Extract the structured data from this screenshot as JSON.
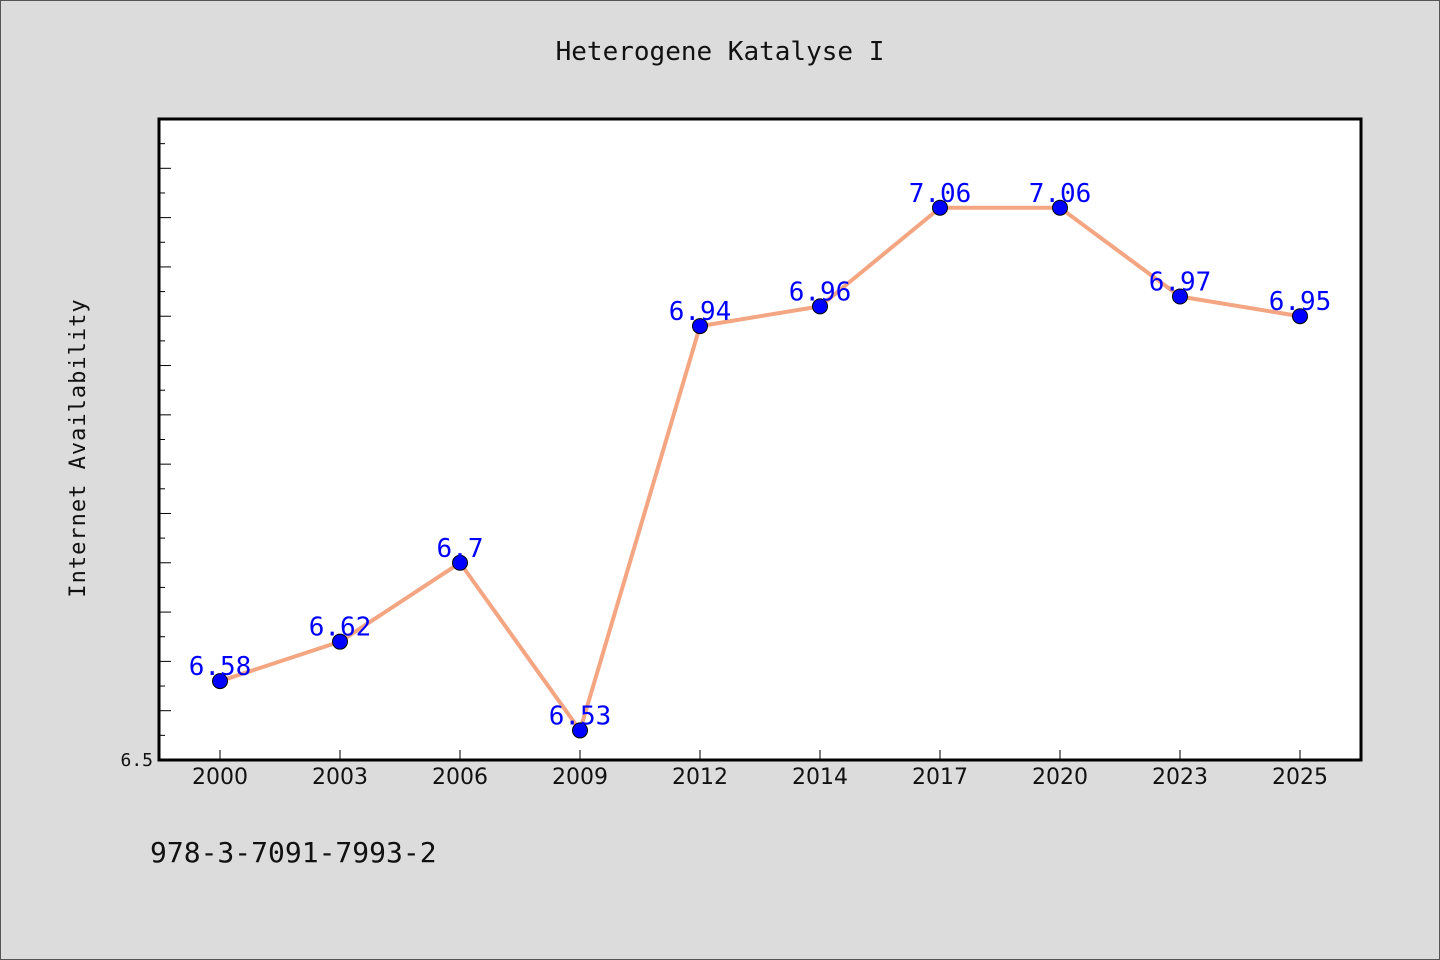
{
  "footer": {
    "isbn": "978-3-7091-7993-2"
  },
  "chart_data": {
    "type": "line",
    "title": "Heterogene Katalyse I",
    "xlabel": "",
    "ylabel": "Internet Availability",
    "categories": [
      "2000",
      "2003",
      "2006",
      "2009",
      "2012",
      "2014",
      "2017",
      "2020",
      "2023",
      "2025"
    ],
    "series": [
      {
        "values": [
          6.58,
          6.62,
          6.7,
          6.53,
          6.94,
          6.96,
          7.06,
          7.06,
          6.97,
          6.95
        ]
      }
    ],
    "ylim": [
      6.5,
      7.15
    ],
    "y_tick_labels": [
      "6.5"
    ],
    "data_labels": [
      "6.58",
      "6.62",
      "6.7",
      "6.53",
      "6.94",
      "6.96",
      "7.06",
      "7.06",
      "6.97",
      "6.95"
    ],
    "line_color": "#f4a582",
    "marker_color": "#0000ff",
    "label_color": "#0000ff",
    "grid": false,
    "legend": "none"
  }
}
